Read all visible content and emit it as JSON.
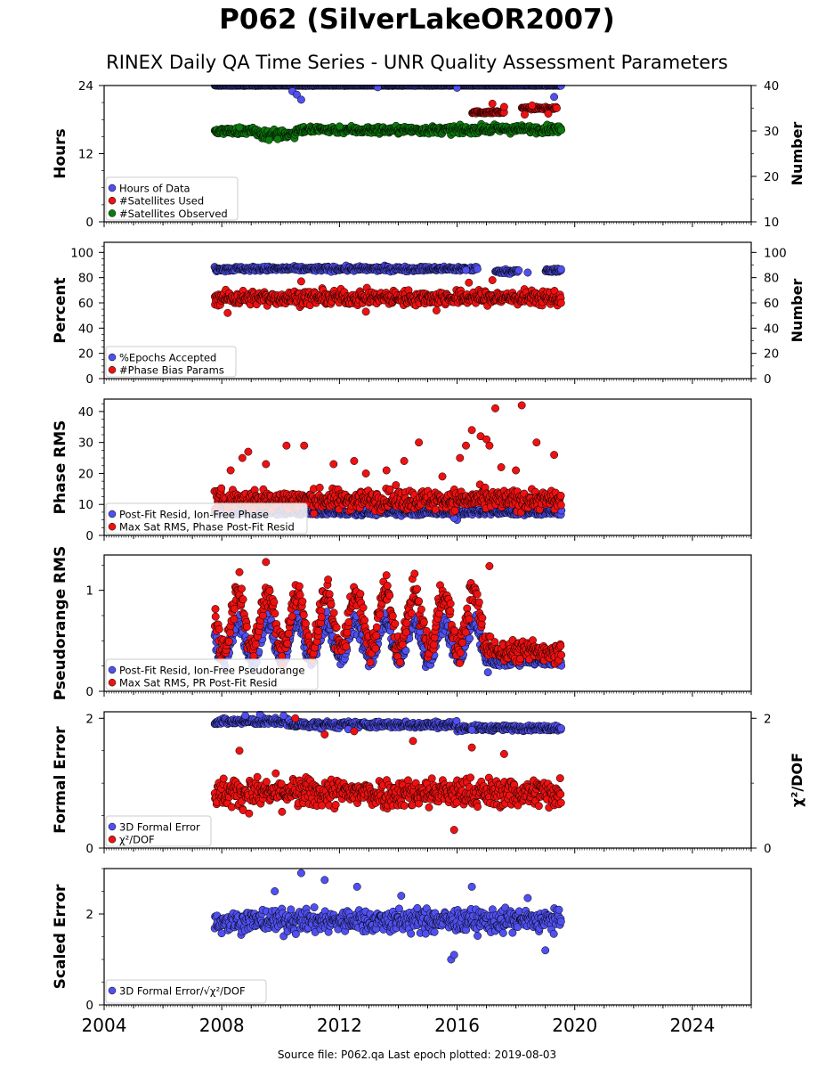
{
  "title": "P062 (SilverLakeOR2007)",
  "subtitle": "RINEX Daily QA Time Series - UNR Quality Assessment Parameters",
  "footer": "Source file: P062.qa Last epoch plotted: 2019-08-03",
  "colors": {
    "blue": "#5050f0",
    "red": "#ee1111",
    "green": "#0d7a0d",
    "frame": "#000000"
  },
  "x_axis": {
    "ticks": [
      2004,
      2008,
      2012,
      2016,
      2020,
      2024
    ],
    "tick_labels": [
      "2004",
      "2008",
      "2012",
      "2016",
      "2020",
      "2024"
    ],
    "xlim": [
      2004,
      2026
    ]
  },
  "chart_data": [
    {
      "type": "scatter",
      "panel": "hours",
      "ylabel": "Hours",
      "y2label": "Number",
      "ylim": [
        0,
        24
      ],
      "yticks": [
        0,
        12,
        24
      ],
      "y2lim": [
        10,
        40
      ],
      "y2ticks": [
        10,
        20,
        30,
        40
      ],
      "legend": "lower-left",
      "series": [
        {
          "name": "Hours of Data",
          "color": "blue",
          "axis": "left",
          "segments": [
            {
              "x": [
                2007.75,
                2019.55
              ],
              "y": 24,
              "spread": 0.05
            }
          ],
          "points": [
            [
              2010.4,
              23.0
            ],
            [
              2010.55,
              22.4
            ],
            [
              2010.7,
              21.5
            ],
            [
              2019.3,
              22.0
            ],
            [
              2016.0,
              23.6
            ],
            [
              2013.3,
              23.7
            ]
          ]
        },
        {
          "name": "#Satellites Used",
          "color": "red",
          "axis": "right",
          "segments": [
            {
              "x": [
                2016.5,
                2017.6
              ],
              "y": 34.1,
              "spread": 0.25
            },
            {
              "x": [
                2018.2,
                2019.4
              ],
              "y": 35.0,
              "spread": 0.25
            }
          ],
          "points": [
            [
              2017.2,
              36.0
            ],
            [
              2017.6,
              35.3
            ],
            [
              2018.3,
              33.6
            ],
            [
              2019.1,
              33.8
            ],
            [
              2018.55,
              35.6
            ]
          ]
        },
        {
          "name": "#Satellites Observed",
          "color": "green",
          "axis": "right",
          "segments": [
            {
              "x": [
                2007.75,
                2009.2
              ],
              "y": 30.0,
              "spread": 0.7
            },
            {
              "x": [
                2009.2,
                2010.5
              ],
              "y": 29.3,
              "spread": 0.9
            },
            {
              "x": [
                2010.5,
                2012.5
              ],
              "y": 30.3,
              "spread": 0.8
            },
            {
              "x": [
                2012.5,
                2016.5
              ],
              "y": 30.2,
              "spread": 0.8
            },
            {
              "x": [
                2016.5,
                2019.55
              ],
              "y": 30.4,
              "spread": 0.8
            }
          ],
          "points": [
            [
              2009.6,
              28.0
            ],
            [
              2009.9,
              28.2
            ],
            [
              2008.6,
              30.8
            ],
            [
              2012.0,
              31.0
            ]
          ]
        }
      ]
    },
    {
      "type": "scatter",
      "panel": "percent",
      "ylabel": "Percent",
      "y2label": "Number",
      "ylim": [
        0,
        108
      ],
      "yticks": [
        0,
        20,
        40,
        60,
        80,
        100
      ],
      "y2lim": [
        0,
        108
      ],
      "y2ticks": [
        0,
        20,
        40,
        60,
        80,
        100
      ],
      "legend": "lower-left",
      "series": [
        {
          "name": "%Epochs Accepted",
          "color": "blue",
          "axis": "left",
          "segments": [
            {
              "x": [
                2007.75,
                2016.7
              ],
              "y": 87.0,
              "spread": 1.8
            },
            {
              "x": [
                2017.3,
                2018.1
              ],
              "y": 85.0,
              "spread": 1.5
            },
            {
              "x": [
                2019.0,
                2019.55
              ],
              "y": 85.5,
              "spread": 1.8
            }
          ],
          "points": [
            [
              2018.4,
              84.0
            ],
            [
              2016.3,
              86.0
            ]
          ]
        },
        {
          "name": "#Phase Bias Params",
          "color": "red",
          "axis": "right",
          "segments": [
            {
              "x": [
                2007.75,
                2019.55
              ],
              "y": 64.0,
              "spread": 5.5
            }
          ],
          "points": [
            [
              2008.2,
              52.0
            ],
            [
              2012.9,
              53.0
            ],
            [
              2015.3,
              54.0
            ],
            [
              2016.4,
              76.0
            ],
            [
              2010.7,
              77.0
            ],
            [
              2017.2,
              78.0
            ]
          ]
        }
      ]
    },
    {
      "type": "scatter",
      "panel": "phase-rms",
      "ylabel": "Phase RMS",
      "ylim": [
        0,
        44
      ],
      "yticks": [
        0,
        10,
        20,
        30,
        40
      ],
      "legend": "lower-left",
      "series": [
        {
          "name": "Post-Fit Resid, Ion-Free Phase",
          "color": "blue",
          "axis": "left",
          "segments": [
            {
              "x": [
                2007.75,
                2019.55
              ],
              "y": 7.5,
              "spread": 0.9
            }
          ],
          "points": [
            [
              2016.0,
              5.0
            ],
            [
              2015.9,
              5.6
            ]
          ]
        },
        {
          "name": "Max Sat RMS, Phase Post-Fit Resid",
          "color": "red",
          "axis": "left",
          "segments": [
            {
              "x": [
                2007.75,
                2019.55
              ],
              "y": 11.5,
              "spread": 3.2
            }
          ],
          "points": [
            [
              2008.3,
              21.0
            ],
            [
              2008.9,
              27.0
            ],
            [
              2008.7,
              25.0
            ],
            [
              2009.5,
              23.0
            ],
            [
              2010.2,
              29.0
            ],
            [
              2010.8,
              29.0
            ],
            [
              2011.8,
              23.0
            ],
            [
              2012.5,
              24.0
            ],
            [
              2013.6,
              21.0
            ],
            [
              2014.7,
              30.0
            ],
            [
              2016.3,
              29.0
            ],
            [
              2016.5,
              34.0
            ],
            [
              2016.8,
              32.0
            ],
            [
              2017.0,
              31.0
            ],
            [
              2017.1,
              29.0
            ],
            [
              2017.3,
              41.0
            ],
            [
              2018.2,
              42.0
            ],
            [
              2018.7,
              30.0
            ],
            [
              2019.3,
              26.0
            ],
            [
              2015.5,
              19.0
            ],
            [
              2016.1,
              25.0
            ],
            [
              2017.5,
              22.0
            ],
            [
              2018.0,
              21.0
            ],
            [
              2014.2,
              24.0
            ],
            [
              2012.9,
              20.0
            ]
          ]
        }
      ]
    },
    {
      "type": "scatter",
      "panel": "pseudorange-rms",
      "ylabel": "Pseudorange RMS",
      "ylim": [
        0,
        1.35
      ],
      "yticks": [
        0,
        1
      ],
      "legend": "lower-left",
      "series": [
        {
          "name": "Post-Fit Resid, Ion-Free Pseudorange",
          "color": "blue",
          "axis": "left",
          "segments": [
            {
              "x": [
                2007.75,
                2017.2
              ],
              "y": 0.5,
              "spread": 0.35
            },
            {
              "x": [
                2017.2,
                2019.55
              ],
              "y": 0.3,
              "spread": 0.05
            }
          ],
          "points": []
        },
        {
          "name": "Max Sat RMS, PR Post-Fit Resid",
          "color": "red",
          "axis": "left",
          "segments": [
            {
              "x": [
                2007.75,
                2017.2
              ],
              "y": 0.7,
              "spread": 0.5
            },
            {
              "x": [
                2017.2,
                2019.55
              ],
              "y": 0.4,
              "spread": 0.1
            }
          ],
          "points": [
            [
              2009.5,
              1.28
            ],
            [
              2008.6,
              1.18
            ],
            [
              2017.1,
              1.24
            ],
            [
              2013.6,
              1.15
            ]
          ]
        }
      ]
    },
    {
      "type": "scatter",
      "panel": "formal-error",
      "ylabel": "Formal Error",
      "y2label": "χ²/DOF",
      "ylim": [
        0,
        2.1
      ],
      "yticks": [
        0,
        2
      ],
      "y2lim": [
        0,
        2.1
      ],
      "y2ticks": [
        0,
        2
      ],
      "legend": "lower-left",
      "series": [
        {
          "name": "3D Formal Error",
          "color": "blue",
          "axis": "left",
          "segments": [
            {
              "x": [
                2007.75,
                2010.3
              ],
              "y": 1.95,
              "spread": 0.05
            },
            {
              "x": [
                2010.3,
                2016.0
              ],
              "y": 1.9,
              "spread": 0.05
            },
            {
              "x": [
                2016.0,
                2019.55
              ],
              "y": 1.85,
              "spread": 0.04
            }
          ],
          "points": [
            [
              2008.8,
              2.04
            ],
            [
              2009.3,
              2.06
            ],
            [
              2010.1,
              2.04
            ],
            [
              2012.3,
              1.83
            ],
            [
              2016.5,
              1.82
            ]
          ]
        },
        {
          "name": "χ²/DOF",
          "color": "red",
          "axis": "right",
          "segments": [
            {
              "x": [
                2007.75,
                2019.55
              ],
              "y": 0.85,
              "spread": 0.22
            }
          ],
          "points": [
            [
              2010.5,
              2.0
            ],
            [
              2011.5,
              1.75
            ],
            [
              2012.5,
              1.8
            ],
            [
              2015.9,
              0.28
            ],
            [
              2014.5,
              1.65
            ],
            [
              2016.5,
              1.55
            ],
            [
              2008.6,
              1.5
            ],
            [
              2017.6,
              1.45
            ]
          ]
        }
      ]
    },
    {
      "type": "scatter",
      "panel": "scaled-error",
      "ylabel": "Scaled Error",
      "ylim": [
        0,
        3.0
      ],
      "yticks": [
        0,
        2
      ],
      "legend": "lower-left",
      "series": [
        {
          "name": "3D Formal Error/√χ²/DOF",
          "color": "blue",
          "axis": "left",
          "segments": [
            {
              "x": [
                2007.75,
                2019.55
              ],
              "y": 1.85,
              "spread": 0.25
            }
          ],
          "points": [
            [
              2010.7,
              2.9
            ],
            [
              2011.5,
              2.75
            ],
            [
              2012.6,
              2.6
            ],
            [
              2016.5,
              2.6
            ],
            [
              2015.8,
              1.0
            ],
            [
              2015.9,
              1.1
            ],
            [
              2019.0,
              1.2
            ],
            [
              2009.8,
              2.5
            ],
            [
              2014.1,
              2.4
            ],
            [
              2018.4,
              2.35
            ]
          ]
        }
      ]
    }
  ]
}
